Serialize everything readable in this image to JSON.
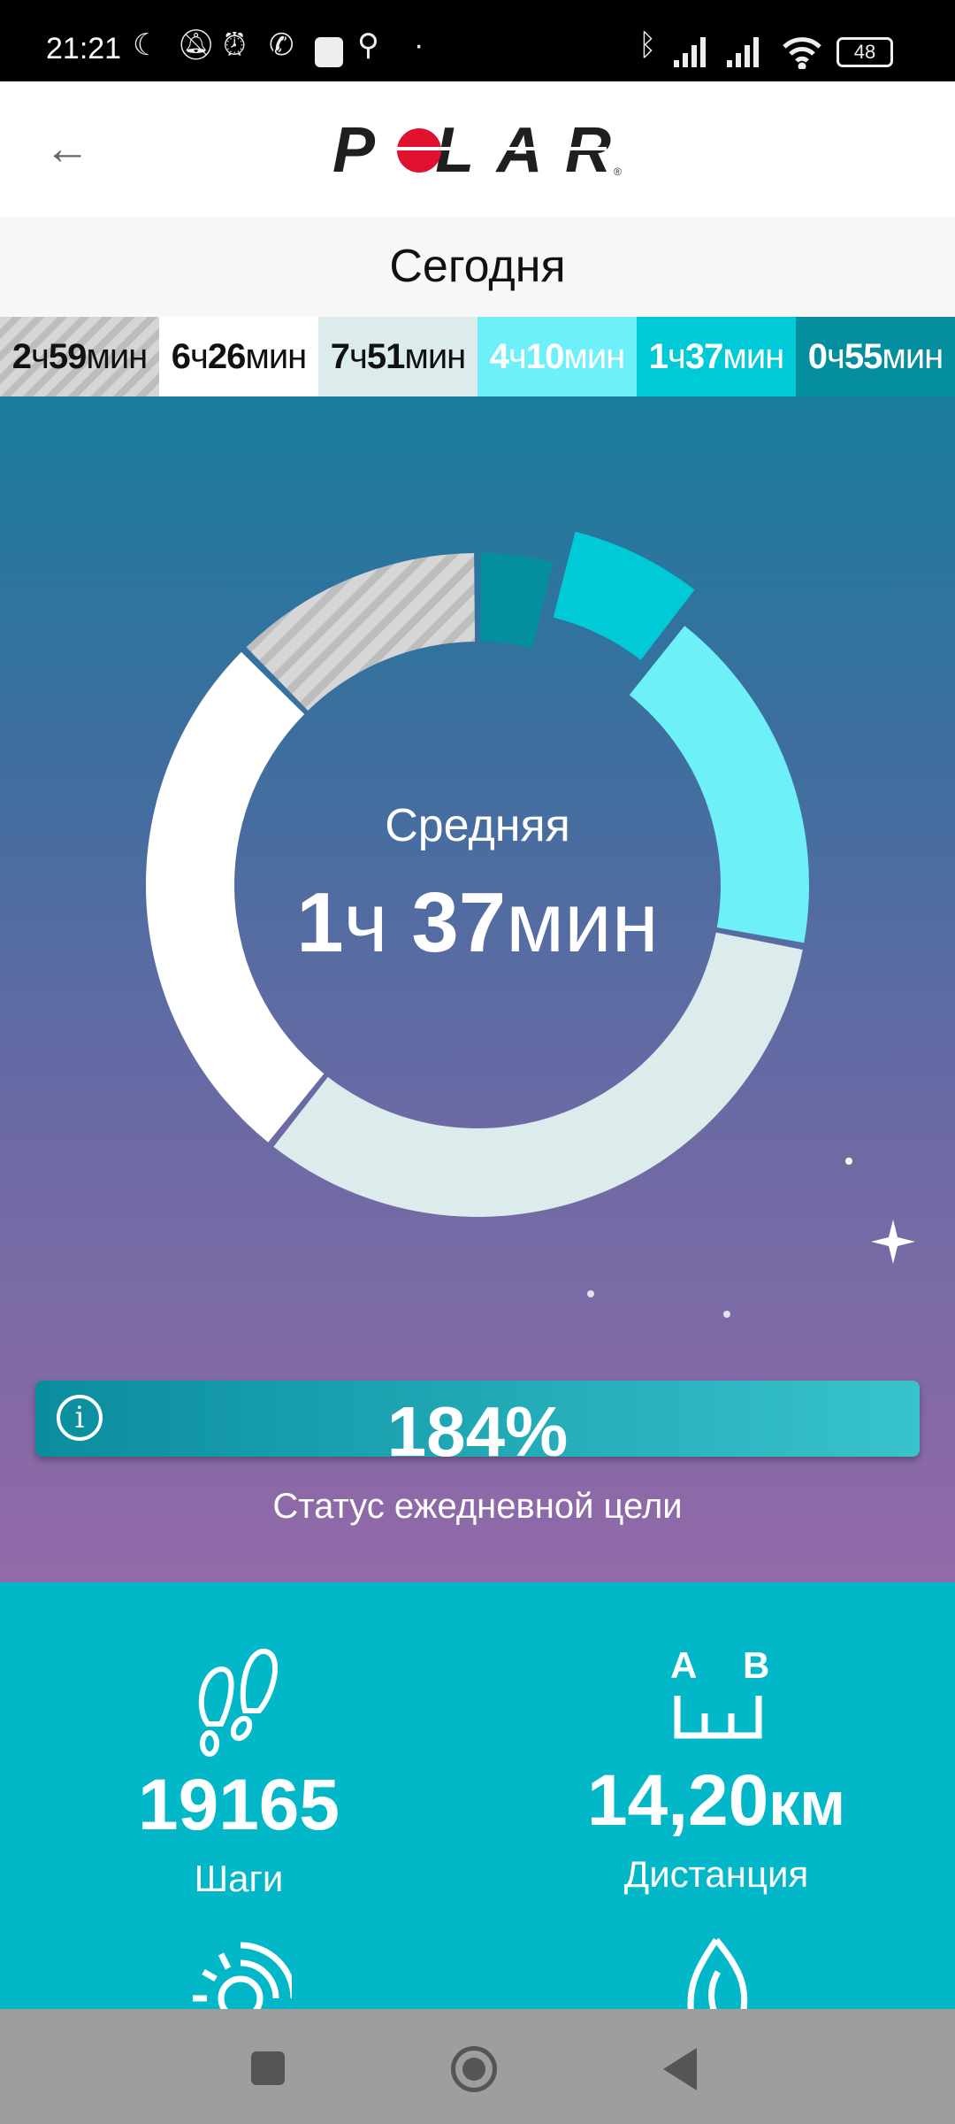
{
  "status_bar": {
    "time": "21:21",
    "battery": "48",
    "icons": [
      "moon-icon",
      "bell-off-icon",
      "alarm-icon",
      "whatsapp-icon",
      "app-icon",
      "search-icon",
      "dot-icon",
      "bluetooth-icon",
      "signal-icon",
      "signal-icon",
      "wifi-icon",
      "battery-icon"
    ]
  },
  "header": {
    "logo": "POLAR",
    "back_icon": "arrow-left-icon"
  },
  "day": {
    "title": "Сегодня"
  },
  "segments": [
    {
      "h": "2",
      "hu": "ч",
      "m": "59",
      "mu": "мин",
      "minutes": 179,
      "color": "#d0d0d0",
      "text": "#111",
      "striped": true
    },
    {
      "h": "6",
      "hu": "ч",
      "m": "26",
      "mu": "мин",
      "minutes": 386,
      "color": "#ffffff",
      "text": "#111"
    },
    {
      "h": "7",
      "hu": "ч",
      "m": "51",
      "mu": "мин",
      "minutes": 471,
      "color": "#dcebeb",
      "text": "#111"
    },
    {
      "h": "4",
      "hu": "ч",
      "m": "10",
      "mu": "мин",
      "minutes": 250,
      "color": "#6ef0f8",
      "text": "#ffffff"
    },
    {
      "h": "1",
      "hu": "ч",
      "m": "37",
      "mu": "мин",
      "minutes": 97,
      "color": "#00cad8",
      "text": "#ffffff",
      "selected": true
    },
    {
      "h": "0",
      "hu": "ч",
      "m": "55",
      "mu": "мин",
      "minutes": 55,
      "color": "#058f9e",
      "text": "#ffffff"
    }
  ],
  "center": {
    "label": "Средняя",
    "h": "1",
    "hu": "ч ",
    "m": "37",
    "mu": "мин"
  },
  "goal": {
    "percent": "184%",
    "label": "Статус ежедневной цели"
  },
  "stats": [
    {
      "value": "19165",
      "unit": "",
      "label": "Шаги",
      "icon": "footsteps-icon"
    },
    {
      "value": "14,20",
      "unit": "км",
      "label": "Дистанция",
      "icon": "distance-ab-icon",
      "icon_a": "A",
      "icon_b": "B"
    }
  ]
}
